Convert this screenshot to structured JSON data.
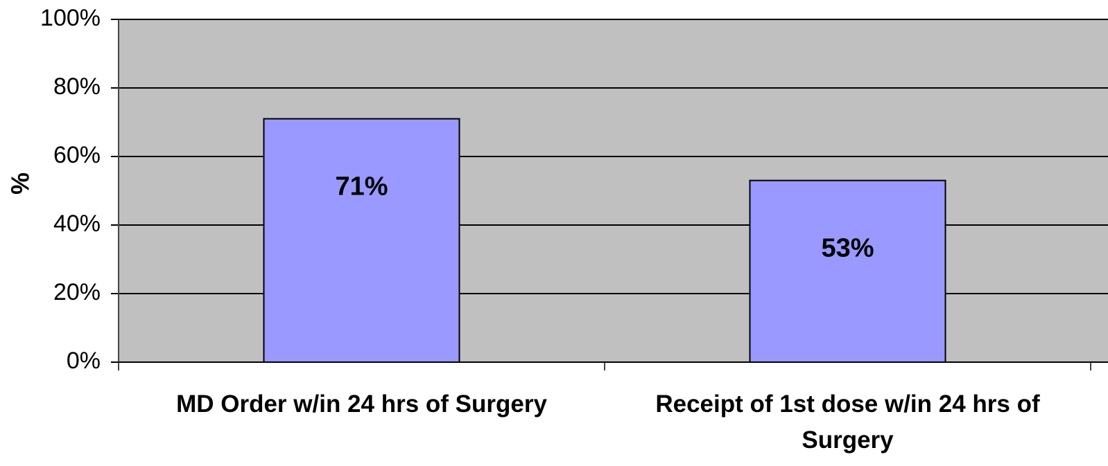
{
  "chart_data": {
    "type": "bar",
    "y_label": "%",
    "categories": [
      "MD Order w/in 24 hrs of Surgery",
      "Receipt of 1st dose w/in 24 hrs of Surgery"
    ],
    "values": [
      71,
      53
    ],
    "value_labels": [
      "71%",
      "53%"
    ],
    "color": "#9999ff",
    "ylim": [
      0,
      100
    ],
    "yticks": [
      {
        "value": 0,
        "label": "0%"
      },
      {
        "value": 20,
        "label": "20%"
      },
      {
        "value": 40,
        "label": "40%"
      },
      {
        "value": 60,
        "label": "60%"
      },
      {
        "value": 80,
        "label": "80%"
      },
      {
        "value": 100,
        "label": "100%"
      }
    ],
    "grid": true
  }
}
